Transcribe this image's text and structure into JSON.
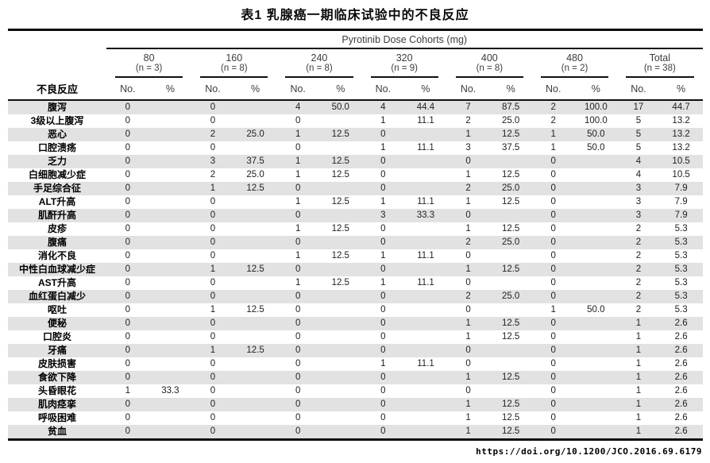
{
  "title": "表1  乳腺癌一期临床试验中的不良反应",
  "table": {
    "spanner": "Pyrotinib Dose Cohorts (mg)",
    "row_header": "不良反应",
    "subcols": [
      "No.",
      "%"
    ],
    "cohorts": [
      {
        "dose": "80",
        "n": "(n = 3)"
      },
      {
        "dose": "160",
        "n": "(n = 8)"
      },
      {
        "dose": "240",
        "n": "(n = 8)"
      },
      {
        "dose": "320",
        "n": "(n = 9)"
      },
      {
        "dose": "400",
        "n": "(n = 8)"
      },
      {
        "dose": "480",
        "n": "(n = 2)"
      },
      {
        "dose": "Total",
        "n": "(n = 38)"
      }
    ],
    "rows": [
      {
        "label": "腹泻",
        "values": [
          "0",
          "",
          "0",
          "",
          "4",
          "50.0",
          "4",
          "44.4",
          "7",
          "87.5",
          "2",
          "100.0",
          "17",
          "44.7"
        ]
      },
      {
        "label": "3级以上腹泻",
        "values": [
          "0",
          "",
          "0",
          "",
          "0",
          "",
          "1",
          "11.1",
          "2",
          "25.0",
          "2",
          "100.0",
          "5",
          "13.2"
        ]
      },
      {
        "label": "恶心",
        "values": [
          "0",
          "",
          "2",
          "25.0",
          "1",
          "12.5",
          "0",
          "",
          "1",
          "12.5",
          "1",
          "50.0",
          "5",
          "13.2"
        ]
      },
      {
        "label": "口腔溃疡",
        "values": [
          "0",
          "",
          "0",
          "",
          "0",
          "",
          "1",
          "11.1",
          "3",
          "37.5",
          "1",
          "50.0",
          "5",
          "13.2"
        ]
      },
      {
        "label": "乏力",
        "values": [
          "0",
          "",
          "3",
          "37.5",
          "1",
          "12.5",
          "0",
          "",
          "0",
          "",
          "0",
          "",
          "4",
          "10.5"
        ]
      },
      {
        "label": "白细胞减少症",
        "values": [
          "0",
          "",
          "2",
          "25.0",
          "1",
          "12.5",
          "0",
          "",
          "1",
          "12.5",
          "0",
          "",
          "4",
          "10.5"
        ]
      },
      {
        "label": "手足综合征",
        "values": [
          "0",
          "",
          "1",
          "12.5",
          "0",
          "",
          "0",
          "",
          "2",
          "25.0",
          "0",
          "",
          "3",
          "7.9"
        ]
      },
      {
        "label": "ALT升高",
        "values": [
          "0",
          "",
          "0",
          "",
          "1",
          "12.5",
          "1",
          "11.1",
          "1",
          "12.5",
          "0",
          "",
          "3",
          "7.9"
        ]
      },
      {
        "label": "肌酐升高",
        "values": [
          "0",
          "",
          "0",
          "",
          "0",
          "",
          "3",
          "33.3",
          "0",
          "",
          "0",
          "",
          "3",
          "7.9"
        ]
      },
      {
        "label": "皮疹",
        "values": [
          "0",
          "",
          "0",
          "",
          "1",
          "12.5",
          "0",
          "",
          "1",
          "12.5",
          "0",
          "",
          "2",
          "5.3"
        ]
      },
      {
        "label": "腹痛",
        "values": [
          "0",
          "",
          "0",
          "",
          "0",
          "",
          "0",
          "",
          "2",
          "25.0",
          "0",
          "",
          "2",
          "5.3"
        ]
      },
      {
        "label": "消化不良",
        "values": [
          "0",
          "",
          "0",
          "",
          "1",
          "12.5",
          "1",
          "11.1",
          "0",
          "",
          "0",
          "",
          "2",
          "5.3"
        ]
      },
      {
        "label": "中性白血球减少症",
        "values": [
          "0",
          "",
          "1",
          "12.5",
          "0",
          "",
          "0",
          "",
          "1",
          "12.5",
          "0",
          "",
          "2",
          "5.3"
        ]
      },
      {
        "label": "AST升高",
        "values": [
          "0",
          "",
          "0",
          "",
          "1",
          "12.5",
          "1",
          "11.1",
          "0",
          "",
          "0",
          "",
          "2",
          "5.3"
        ]
      },
      {
        "label": "血红蛋白减少",
        "values": [
          "0",
          "",
          "0",
          "",
          "0",
          "",
          "0",
          "",
          "2",
          "25.0",
          "0",
          "",
          "2",
          "5.3"
        ]
      },
      {
        "label": "呕吐",
        "values": [
          "0",
          "",
          "1",
          "12.5",
          "0",
          "",
          "0",
          "",
          "0",
          "",
          "1",
          "50.0",
          "2",
          "5.3"
        ]
      },
      {
        "label": "便秘",
        "values": [
          "0",
          "",
          "0",
          "",
          "0",
          "",
          "0",
          "",
          "1",
          "12.5",
          "0",
          "",
          "1",
          "2.6"
        ]
      },
      {
        "label": "口腔炎",
        "values": [
          "0",
          "",
          "0",
          "",
          "0",
          "",
          "0",
          "",
          "1",
          "12.5",
          "0",
          "",
          "1",
          "2.6"
        ]
      },
      {
        "label": "牙痛",
        "values": [
          "0",
          "",
          "1",
          "12.5",
          "0",
          "",
          "0",
          "",
          "0",
          "",
          "0",
          "",
          "1",
          "2.6"
        ]
      },
      {
        "label": "皮肤损害",
        "values": [
          "0",
          "",
          "0",
          "",
          "0",
          "",
          "1",
          "11.1",
          "0",
          "",
          "0",
          "",
          "1",
          "2.6"
        ]
      },
      {
        "label": "食欲下降",
        "values": [
          "0",
          "",
          "0",
          "",
          "0",
          "",
          "0",
          "",
          "1",
          "12.5",
          "0",
          "",
          "1",
          "2.6"
        ]
      },
      {
        "label": "头昏眼花",
        "values": [
          "1",
          "33.3",
          "0",
          "",
          "0",
          "",
          "0",
          "",
          "0",
          "",
          "0",
          "",
          "1",
          "2.6"
        ]
      },
      {
        "label": "肌肉痉挛",
        "values": [
          "0",
          "",
          "0",
          "",
          "0",
          "",
          "0",
          "",
          "1",
          "12.5",
          "0",
          "",
          "1",
          "2.6"
        ]
      },
      {
        "label": "呼吸困难",
        "values": [
          "0",
          "",
          "0",
          "",
          "0",
          "",
          "0",
          "",
          "1",
          "12.5",
          "0",
          "",
          "1",
          "2.6"
        ]
      },
      {
        "label": "贫血",
        "values": [
          "0",
          "",
          "0",
          "",
          "0",
          "",
          "0",
          "",
          "1",
          "12.5",
          "0",
          "",
          "1",
          "2.6"
        ]
      }
    ]
  },
  "footer": {
    "doi": "https://doi.org/10.1200/JCO.2016.69.6179"
  },
  "colors": {
    "stripe": "#e2e2e2",
    "rule": "#0a0a0a"
  }
}
